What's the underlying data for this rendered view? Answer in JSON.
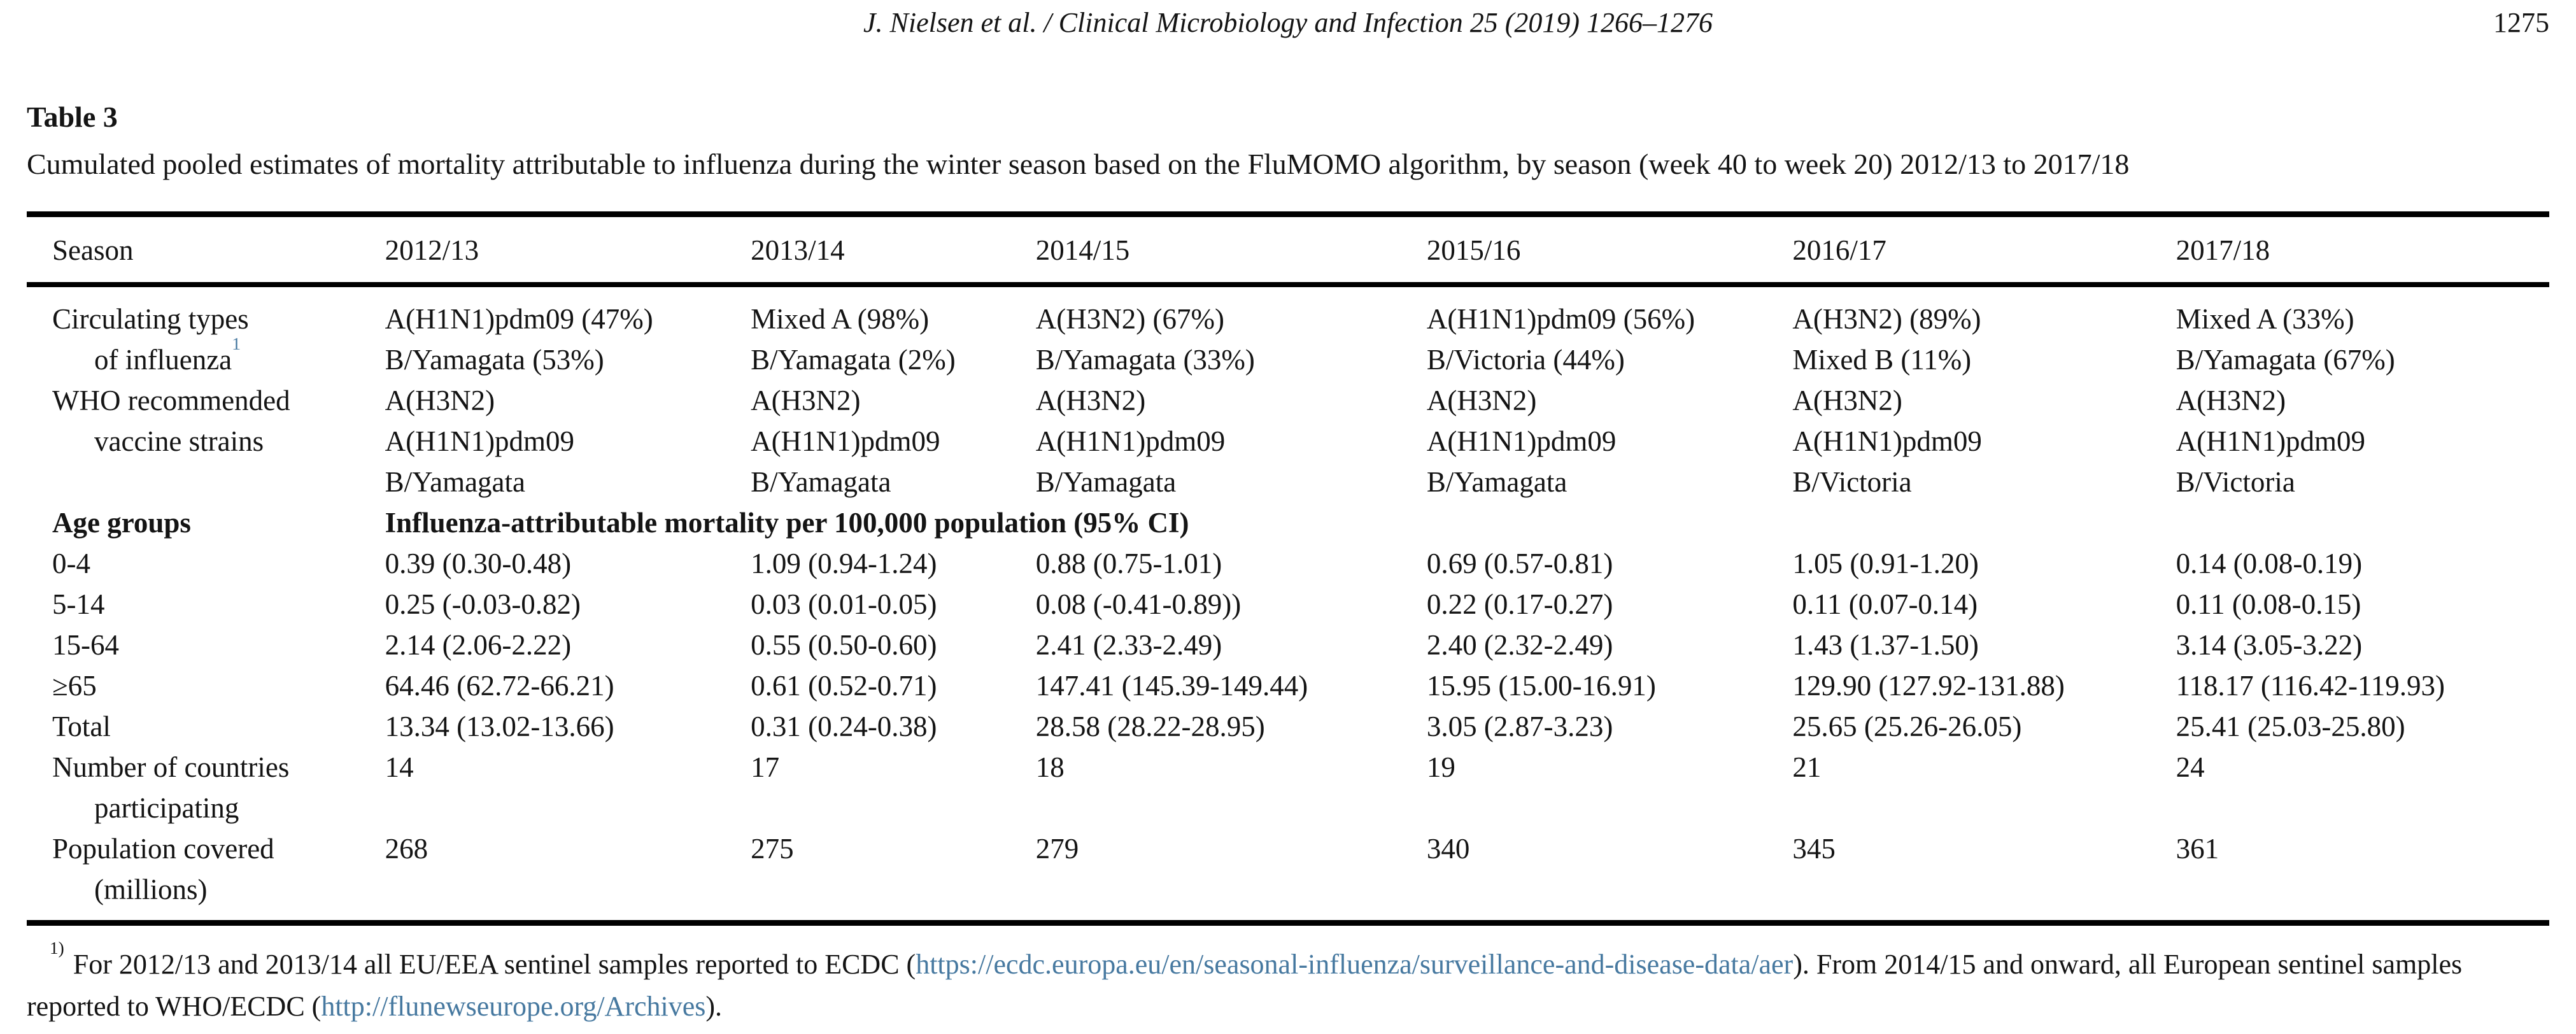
{
  "page_header": {
    "citation": "J. Nielsen et al. / Clinical Microbiology and Infection 25 (2019) 1266–1276",
    "page_number": "1275"
  },
  "caption": {
    "label": "Table 3",
    "text": "Cumulated pooled estimates of mortality attributable to influenza during the winter season based on the FluMOMO algorithm, by season (week 40 to week 20) 2012/13 to 2017/18"
  },
  "table": {
    "columns": [
      "Season",
      "2012/13",
      "2013/14",
      "2014/15",
      "2015/16",
      "2016/17",
      "2017/18"
    ],
    "rows": [
      {
        "label": "Circulating types",
        "cells": [
          "A(H1N1)pdm09 (47%)",
          "Mixed A (98%)",
          "A(H3N2) (67%)",
          "A(H1N1)pdm09 (56%)",
          "A(H3N2) (89%)",
          "Mixed A (33%)"
        ]
      },
      {
        "label": "of influenza",
        "sup": "1",
        "indent": true,
        "cells": [
          "B/Yamagata (53%)",
          "B/Yamagata (2%)",
          "B/Yamagata (33%)",
          "B/Victoria (44%)",
          "Mixed B (11%)",
          "B/Yamagata (67%)"
        ]
      },
      {
        "label": "WHO recommended",
        "cells": [
          "A(H3N2)",
          "A(H3N2)",
          "A(H3N2)",
          "A(H3N2)",
          "A(H3N2)",
          "A(H3N2)"
        ]
      },
      {
        "label": "vaccine strains",
        "indent": true,
        "cells": [
          "A(H1N1)pdm09",
          "A(H1N1)pdm09",
          "A(H1N1)pdm09",
          "A(H1N1)pdm09",
          "A(H1N1)pdm09",
          "A(H1N1)pdm09"
        ]
      },
      {
        "label": "",
        "cells": [
          "B/Yamagata",
          "B/Yamagata",
          "B/Yamagata",
          "B/Yamagata",
          "B/Victoria",
          "B/Victoria"
        ]
      },
      {
        "label": "Age groups",
        "bold": true,
        "span": "Influenza-attributable mortality per 100,000 population (95% CI)"
      },
      {
        "label": "0-4",
        "cells": [
          "0.39 (0.30-0.48)",
          "1.09 (0.94-1.24)",
          "0.88 (0.75-1.01)",
          "0.69 (0.57-0.81)",
          "1.05 (0.91-1.20)",
          "0.14 (0.08-0.19)"
        ]
      },
      {
        "label": "5-14",
        "cells": [
          "0.25 (-0.03-0.82)",
          "0.03 (0.01-0.05)",
          "0.08 (-0.41-0.89))",
          "0.22 (0.17-0.27)",
          "0.11 (0.07-0.14)",
          "0.11 (0.08-0.15)"
        ]
      },
      {
        "label": "15-64",
        "cells": [
          "2.14 (2.06-2.22)",
          "0.55 (0.50-0.60)",
          "2.41 (2.33-2.49)",
          "2.40 (2.32-2.49)",
          "1.43 (1.37-1.50)",
          "3.14 (3.05-3.22)"
        ]
      },
      {
        "label": "≥65",
        "cells": [
          "64.46 (62.72-66.21)",
          "0.61 (0.52-0.71)",
          "147.41 (145.39-149.44)",
          "15.95 (15.00-16.91)",
          "129.90 (127.92-131.88)",
          "118.17 (116.42-119.93)"
        ]
      },
      {
        "label": "Total",
        "cells": [
          "13.34 (13.02-13.66)",
          "0.31 (0.24-0.38)",
          "28.58 (28.22-28.95)",
          "3.05 (2.87-3.23)",
          "25.65 (25.26-26.05)",
          "25.41 (25.03-25.80)"
        ]
      },
      {
        "label": "Number of countries",
        "cells": [
          "14",
          "17",
          "18",
          "19",
          "21",
          "24"
        ]
      },
      {
        "label": "participating",
        "indent": true,
        "cells": [
          "",
          "",
          "",
          "",
          "",
          ""
        ]
      },
      {
        "label": "Population covered",
        "cells": [
          "268",
          "275",
          "279",
          "340",
          "345",
          "361"
        ]
      },
      {
        "label": "(millions)",
        "indent": true,
        "cells": [
          "",
          "",
          "",
          "",
          "",
          ""
        ]
      }
    ]
  },
  "footnote": {
    "marker": "1)",
    "text1": "For 2012/13 and 2013/14 all EU/EEA sentinel samples reported to ECDC (",
    "link1": "https://ecdc.europa.eu/en/seasonal-influenza/surveillance-and-disease-data/aer",
    "text2": "). From 2014/15 and onward, all European sentinel samples reported to WHO/ECDC (",
    "link2": "http://flunewseurope.org/Archives",
    "text3": ")."
  },
  "colors": {
    "link_blue": "#4779a0",
    "text": "#141414",
    "rule": "#000000"
  }
}
